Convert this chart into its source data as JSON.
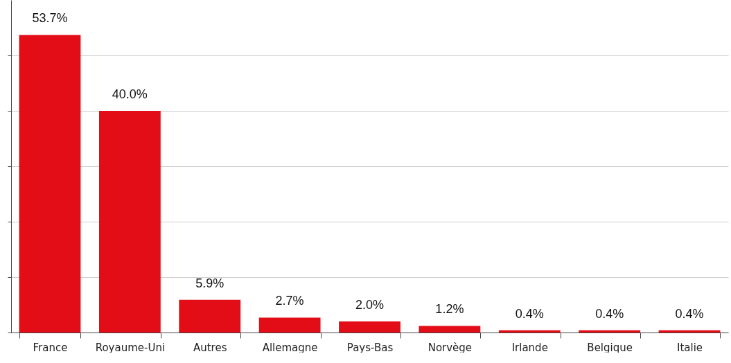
{
  "chart_data": {
    "type": "bar",
    "categories": [
      "France",
      "Royaume-Uni",
      "Autres",
      "Allemagne",
      "Pays-Bas",
      "Norvège",
      "Irlande",
      "Belgique",
      "Italie"
    ],
    "values": [
      53.7,
      40.0,
      5.9,
      2.7,
      2.0,
      1.2,
      0.4,
      0.4,
      0.4
    ],
    "value_labels": [
      "53.7%",
      "40.0%",
      "5.9%",
      "2.7%",
      "2.0%",
      "1.2%",
      "0.4%",
      "0.4%",
      "0.4%"
    ],
    "color": "#e30d18",
    "ylim": [
      0,
      60
    ],
    "yticks": [
      {
        "value": 0,
        "label": null
      },
      {
        "value": 10,
        "label": null
      },
      {
        "value": 20,
        "label": null
      },
      {
        "value": 30,
        "label": null
      },
      {
        "value": 40,
        "label": null
      },
      {
        "value": 50,
        "label": null
      }
    ],
    "grid": "y",
    "tick_labels": "x"
  }
}
